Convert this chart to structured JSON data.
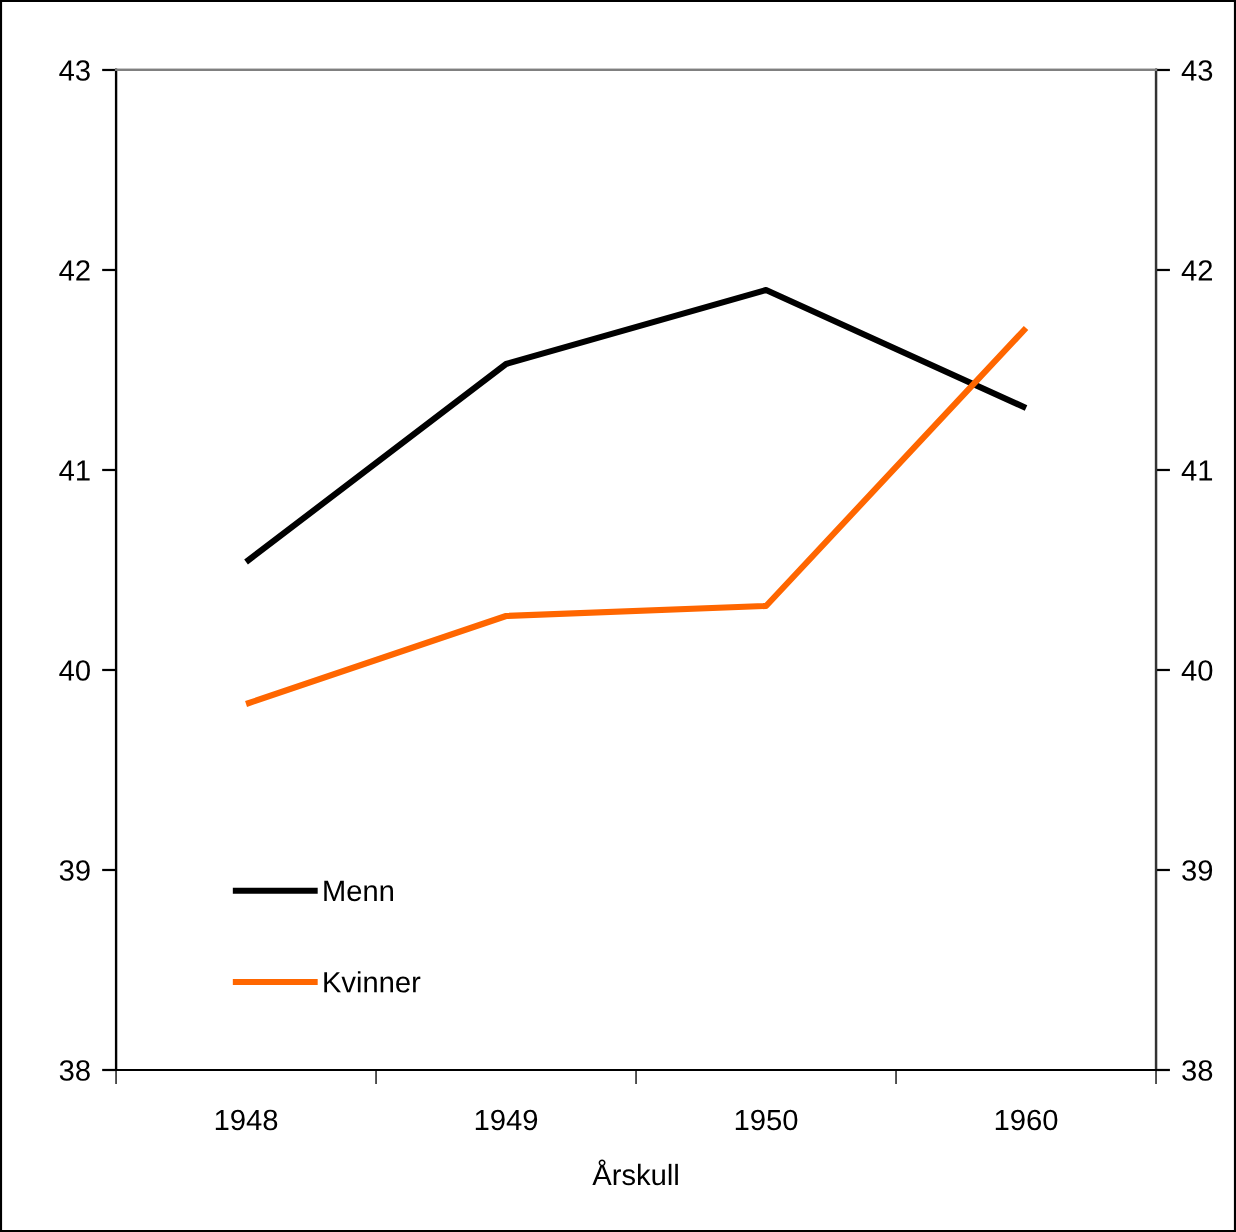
{
  "chart_data": {
    "type": "line",
    "categories": [
      "1948",
      "1949",
      "1950",
      "1960"
    ],
    "xlabel": "Årskull",
    "series": [
      {
        "name": "Menn",
        "color": "#000000",
        "values": [
          40.54,
          41.53,
          41.9,
          41.31
        ]
      },
      {
        "name": "Kvinner",
        "color": "#ff6600",
        "values": [
          39.83,
          40.27,
          40.32,
          41.71
        ]
      }
    ],
    "ylim": [
      38,
      43
    ],
    "yticks": [
      38,
      39,
      40,
      41,
      42,
      43
    ],
    "y2lim": [
      38,
      43
    ],
    "y2ticks": [
      38,
      39,
      40,
      41,
      42,
      43
    ],
    "grid": false,
    "legend": "bottom left",
    "marker": "none",
    "line_style": "solid"
  }
}
